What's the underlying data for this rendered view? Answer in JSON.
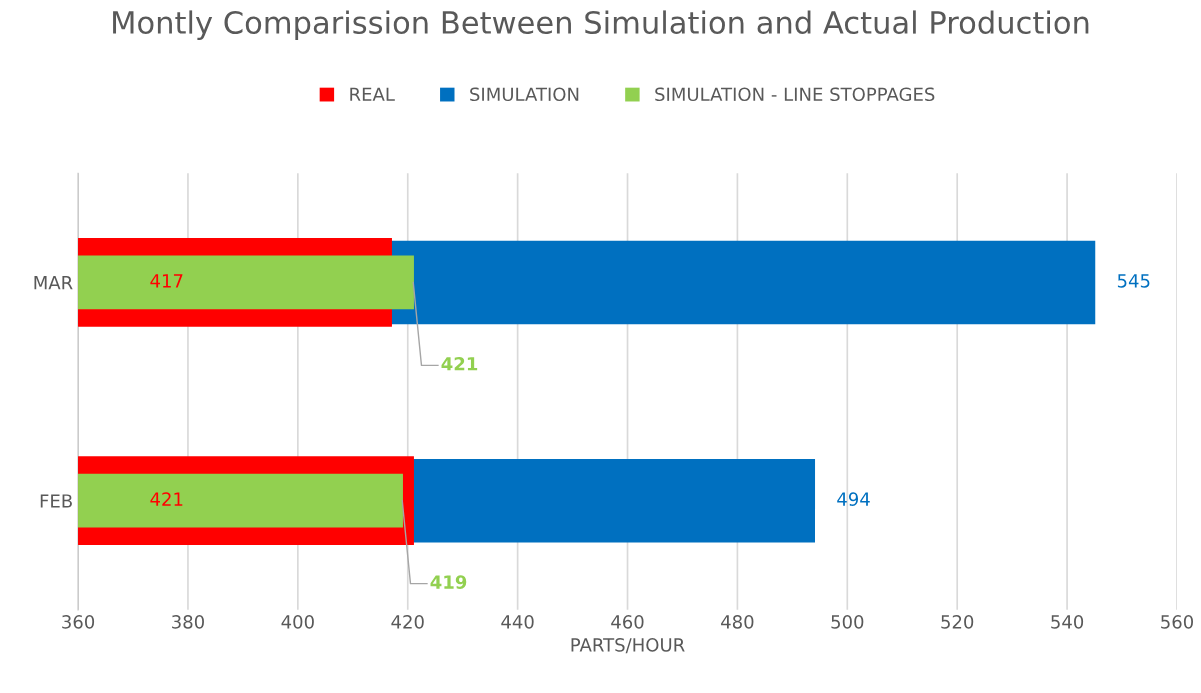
{
  "chart_data": {
    "type": "bar",
    "orientation": "horizontal",
    "title": "Montly Comparission Between Simulation and Actual Production",
    "xlabel": "PARTS/HOUR",
    "categories": [
      "MAR",
      "FEB"
    ],
    "series": [
      {
        "name": "REAL",
        "color": "#ff0000",
        "values": [
          417,
          421
        ]
      },
      {
        "name": "SIMULATION",
        "color": "#0070c0",
        "values": [
          545,
          494
        ]
      },
      {
        "name": "SIMULATION - LINE STOPPAGES",
        "color": "#92d050",
        "values": [
          421,
          419
        ]
      }
    ],
    "xlim": [
      360,
      560
    ],
    "xticks": [
      360,
      380,
      400,
      420,
      440,
      460,
      480,
      500,
      520,
      540,
      560
    ],
    "grid": "x",
    "legend": "top",
    "data_labels": true
  }
}
